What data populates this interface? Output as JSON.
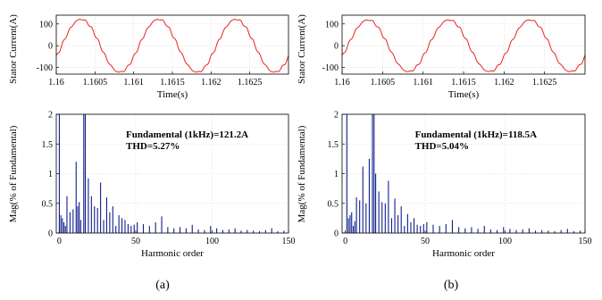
{
  "colors": {
    "waveform": "#e8231f",
    "spectrum": "#0f1f8c",
    "grid": "#cfcfcf",
    "axis": "#000000"
  },
  "chart_data": [
    {
      "type": "line",
      "panel": "a-top",
      "xlabel": "Time(s)",
      "ylabel": "Stator Current(A)",
      "xlim": [
        1.16,
        1.163
      ],
      "ylim": [
        -130,
        140
      ],
      "xticks": [
        1.16,
        1.1605,
        1.161,
        1.1615,
        1.162,
        1.1625
      ],
      "xtick_labels": [
        "1.16",
        "1.1605",
        "1.161",
        "1.1615",
        "1.162",
        "1.1625"
      ],
      "yticks": [
        100,
        0,
        -100
      ],
      "ytick_labels": [
        "100",
        "0",
        "-100"
      ],
      "grid": true,
      "series": [
        {
          "frequency_hz": 1000,
          "amplitude": 121.2,
          "phase_deg": -25
        }
      ]
    },
    {
      "type": "bar",
      "panel": "a-bottom",
      "xlabel": "Harmonic order",
      "ylabel": "Mag(% of Fundamental)",
      "xlim": [
        -2,
        150
      ],
      "ylim": [
        0,
        2
      ],
      "xticks": [
        0,
        50,
        100,
        150
      ],
      "xtick_labels": [
        "0",
        "50",
        "100",
        "150"
      ],
      "yticks": [
        0,
        0.5,
        1,
        1.5,
        2
      ],
      "ytick_labels": [
        "0",
        "0.5",
        "1",
        "1.5",
        "2"
      ],
      "grid": true,
      "annotation": [
        "Fundamental (1kHz)=121.2A",
        "THD=5.27%"
      ],
      "x": [
        0,
        1,
        2,
        3,
        4,
        5,
        7,
        9,
        11,
        12,
        13,
        14,
        16,
        17,
        19,
        21,
        23,
        25,
        27,
        29,
        31,
        33,
        35,
        37,
        39,
        41,
        43,
        45,
        47,
        49,
        51,
        55,
        59,
        63,
        67,
        71,
        75,
        79,
        83,
        87,
        91,
        95,
        99,
        103,
        107,
        111,
        115,
        119,
        123,
        127,
        131,
        135,
        139,
        143,
        147
      ],
      "values": [
        2.0,
        0.3,
        0.25,
        0.18,
        0.12,
        0.62,
        0.35,
        0.4,
        1.2,
        0.45,
        0.52,
        0.22,
        2.0,
        2.0,
        0.92,
        0.62,
        0.45,
        0.42,
        0.85,
        0.22,
        0.6,
        0.35,
        0.45,
        0.12,
        0.3,
        0.25,
        0.22,
        0.15,
        0.12,
        0.14,
        0.18,
        0.15,
        0.12,
        0.18,
        0.28,
        0.1,
        0.08,
        0.1,
        0.08,
        0.14,
        0.06,
        0.05,
        0.12,
        0.08,
        0.05,
        0.06,
        0.08,
        0.04,
        0.05,
        0.04,
        0.03,
        0.05,
        0.08,
        0.03,
        0.04
      ]
    },
    {
      "type": "line",
      "panel": "b-top",
      "xlabel": "Time(s)",
      "ylabel": "Stator Current(A)",
      "xlim": [
        1.16,
        1.163
      ],
      "ylim": [
        -130,
        140
      ],
      "xticks": [
        1.16,
        1.1605,
        1.161,
        1.1615,
        1.162,
        1.1625
      ],
      "xtick_labels": [
        "1.16",
        "1.1605",
        "1.161",
        "1.1615",
        "1.162",
        "1.1625"
      ],
      "yticks": [
        100,
        0,
        -100
      ],
      "ytick_labels": [
        "100",
        "0",
        "-100"
      ],
      "grid": true,
      "series": [
        {
          "frequency_hz": 1000,
          "amplitude": 118.5,
          "phase_deg": -25
        }
      ]
    },
    {
      "type": "bar",
      "panel": "b-bottom",
      "xlabel": "Harmonic order",
      "ylabel": "Mag(% of Fundamental)",
      "xlim": [
        -2,
        150
      ],
      "ylim": [
        0,
        2
      ],
      "xticks": [
        0,
        50,
        100,
        150
      ],
      "xtick_labels": [
        "0",
        "50",
        "100",
        "150"
      ],
      "yticks": [
        0,
        0.5,
        1,
        1.5,
        2
      ],
      "ytick_labels": [
        "0",
        "0.5",
        "1",
        "1.5",
        "2"
      ],
      "grid": true,
      "annotation": [
        "Fundamental (1kHz)=118.5A",
        "THD=5.04%"
      ],
      "x": [
        1,
        2,
        3,
        4,
        5,
        6,
        7,
        9,
        11,
        13,
        15,
        17,
        18,
        19,
        21,
        23,
        25,
        27,
        29,
        31,
        33,
        35,
        37,
        39,
        41,
        43,
        45,
        47,
        49,
        51,
        55,
        59,
        63,
        67,
        71,
        75,
        79,
        83,
        87,
        91,
        95,
        99,
        103,
        107,
        111,
        115,
        119,
        123,
        127,
        131,
        135,
        139,
        143,
        147
      ],
      "values": [
        2.0,
        0.25,
        0.3,
        0.35,
        0.12,
        0.2,
        0.6,
        0.55,
        1.12,
        0.5,
        1.25,
        2.0,
        2.0,
        1.0,
        0.7,
        0.52,
        0.5,
        0.88,
        0.25,
        0.58,
        0.3,
        0.45,
        0.12,
        0.32,
        0.18,
        0.25,
        0.14,
        0.12,
        0.15,
        0.18,
        0.14,
        0.12,
        0.15,
        0.22,
        0.1,
        0.08,
        0.1,
        0.07,
        0.12,
        0.06,
        0.05,
        0.1,
        0.07,
        0.05,
        0.06,
        0.08,
        0.04,
        0.05,
        0.04,
        0.03,
        0.05,
        0.07,
        0.03,
        0.04
      ]
    }
  ],
  "captions": [
    "(a)",
    "(b)"
  ]
}
